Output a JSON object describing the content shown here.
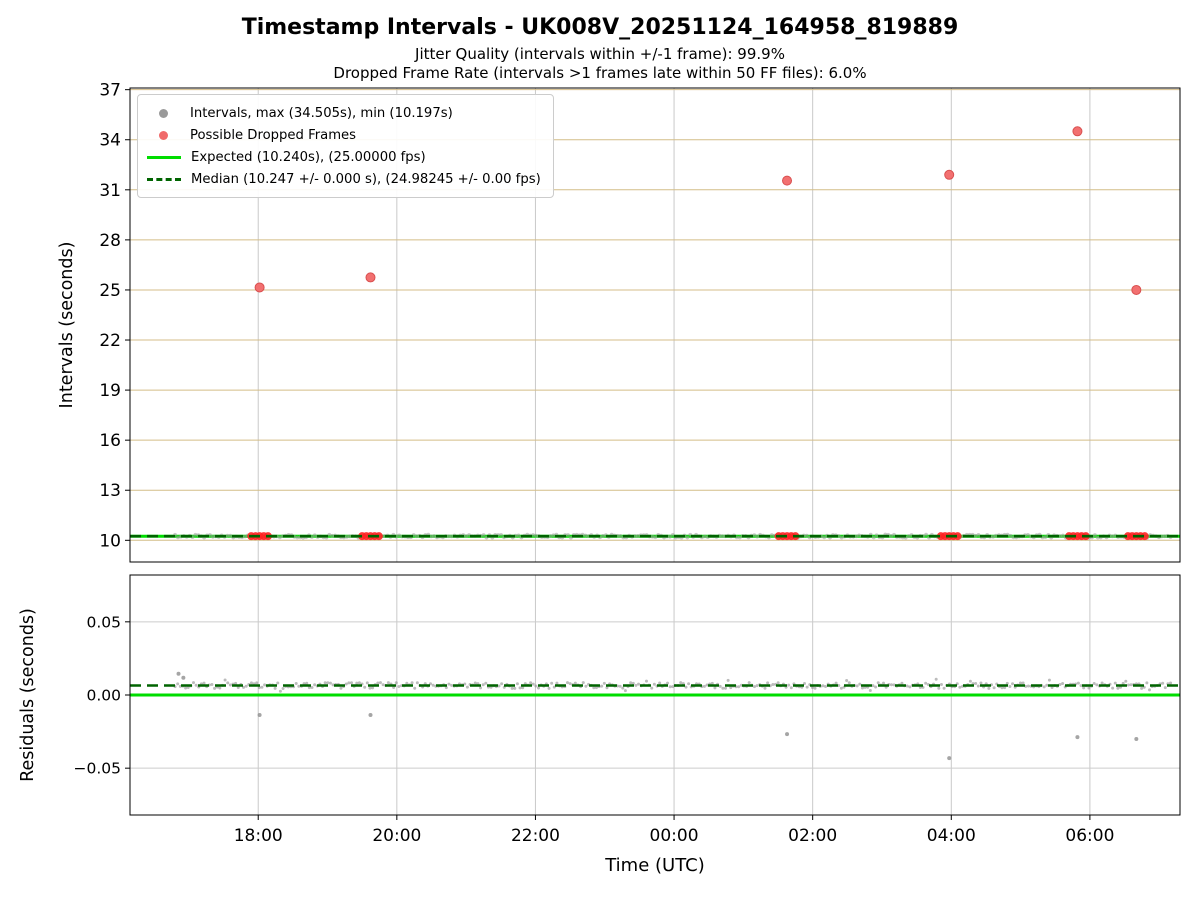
{
  "figure": {
    "title": "Timestamp Intervals - UK008V_20251124_164958_819889",
    "subtitle1": "Jitter Quality (intervals within +/-1 frame): 99.9%",
    "subtitle2": "Dropped Frame Rate (intervals >1 frames late within 50 FF files): 6.0%"
  },
  "chart_data": [
    {
      "type": "scatter",
      "name": "intervals-plot",
      "ylabel": "Intervals (seconds)",
      "ylim": [
        8.7,
        37.1
      ],
      "yticks": [
        10,
        13,
        16,
        19,
        22,
        25,
        28,
        31,
        34,
        37
      ],
      "ytick_labels": [
        "10",
        "13",
        "16",
        "19",
        "22",
        "25",
        "28",
        "31",
        "34",
        "37"
      ],
      "xlim": [
        16.15,
        31.3
      ],
      "xticks": [
        18,
        20,
        22,
        24,
        26,
        28,
        30
      ],
      "xtick_labels": [
        "18:00",
        "20:00",
        "22:00",
        "00:00",
        "02:00",
        "04:00",
        "06:00"
      ],
      "grid": {
        "h_color": "#d4bd88",
        "v_color": "#c9c9c9",
        "on": true
      },
      "legend": {
        "position": "upper left",
        "items": [
          {
            "label": "Intervals, max (34.505s), min (10.197s)",
            "marker": "dot",
            "color": "#9a9a9a"
          },
          {
            "label": "Possible Dropped Frames",
            "marker": "dot",
            "color": "#f06a6a"
          },
          {
            "label": "Expected (10.240s), (25.00000 fps)",
            "marker": "line",
            "color": "#00dd00"
          },
          {
            "label": "Median (10.247 +/- 0.000 s), (24.98245 +/- 0.00 fps)",
            "marker": "dashed-line",
            "color": "#006400"
          }
        ]
      },
      "series": {
        "expected_line": {
          "y": 10.24,
          "color": "#00dd00",
          "label_value_s": "10.240",
          "fps": "25.00000"
        },
        "median_line": {
          "y": 10.247,
          "color": "#006400",
          "label_value_s": "10.247",
          "fps": "24.98245"
        },
        "intervals": {
          "y": 10.247,
          "x_start": 16.8,
          "x_end": 31.2,
          "color": "#9a9a9a",
          "max_s": 34.505,
          "min_s": 10.197
        },
        "dropped_clusters": {
          "y": 10.247,
          "color": "#ff2222",
          "x": [
            18.02,
            19.62,
            25.63,
            27.97,
            29.82,
            30.67
          ]
        },
        "dropped_outliers": {
          "color": "#f27070",
          "edge": "#d94f4f",
          "points": [
            {
              "x": 18.02,
              "y": 25.15
            },
            {
              "x": 19.62,
              "y": 25.75
            },
            {
              "x": 25.63,
              "y": 31.55
            },
            {
              "x": 27.97,
              "y": 31.9
            },
            {
              "x": 29.82,
              "y": 34.505
            },
            {
              "x": 30.67,
              "y": 25.0
            }
          ]
        }
      }
    },
    {
      "type": "scatter",
      "name": "residuals-plot",
      "ylabel": "Residuals (seconds)",
      "xlabel": "Time (UTC)",
      "ylim": [
        -0.082,
        0.082
      ],
      "yticks": [
        -0.05,
        0,
        0.05
      ],
      "ytick_labels": [
        "−0.05",
        "0.00",
        "0.05"
      ],
      "xlim": [
        16.15,
        31.3
      ],
      "xticks": [
        18,
        20,
        22,
        24,
        26,
        28,
        30
      ],
      "xtick_labels": [
        "18:00",
        "20:00",
        "22:00",
        "00:00",
        "02:00",
        "04:00",
        "06:00"
      ],
      "grid": {
        "h_color": "#cccccc",
        "v_color": "#c9c9c9",
        "on": true
      },
      "series": {
        "expected_line": {
          "y": 0.0,
          "color": "#00dd00"
        },
        "median_line": {
          "y": 0.0065,
          "color": "#006400"
        },
        "band": {
          "y": 0.0065,
          "spread": 0.004,
          "x_start": 16.8,
          "x_end": 31.2,
          "color": "#8f8f8f"
        },
        "outliers": {
          "color": "#8f8f8f",
          "points": [
            {
              "x": 16.85,
              "y": 0.0145
            },
            {
              "x": 16.92,
              "y": 0.0118
            },
            {
              "x": 18.02,
              "y": -0.0137
            },
            {
              "x": 19.62,
              "y": -0.0137
            },
            {
              "x": 25.63,
              "y": -0.0267
            },
            {
              "x": 27.97,
              "y": -0.0431
            },
            {
              "x": 29.82,
              "y": -0.0288
            },
            {
              "x": 30.67,
              "y": -0.0301
            }
          ]
        }
      }
    }
  ]
}
